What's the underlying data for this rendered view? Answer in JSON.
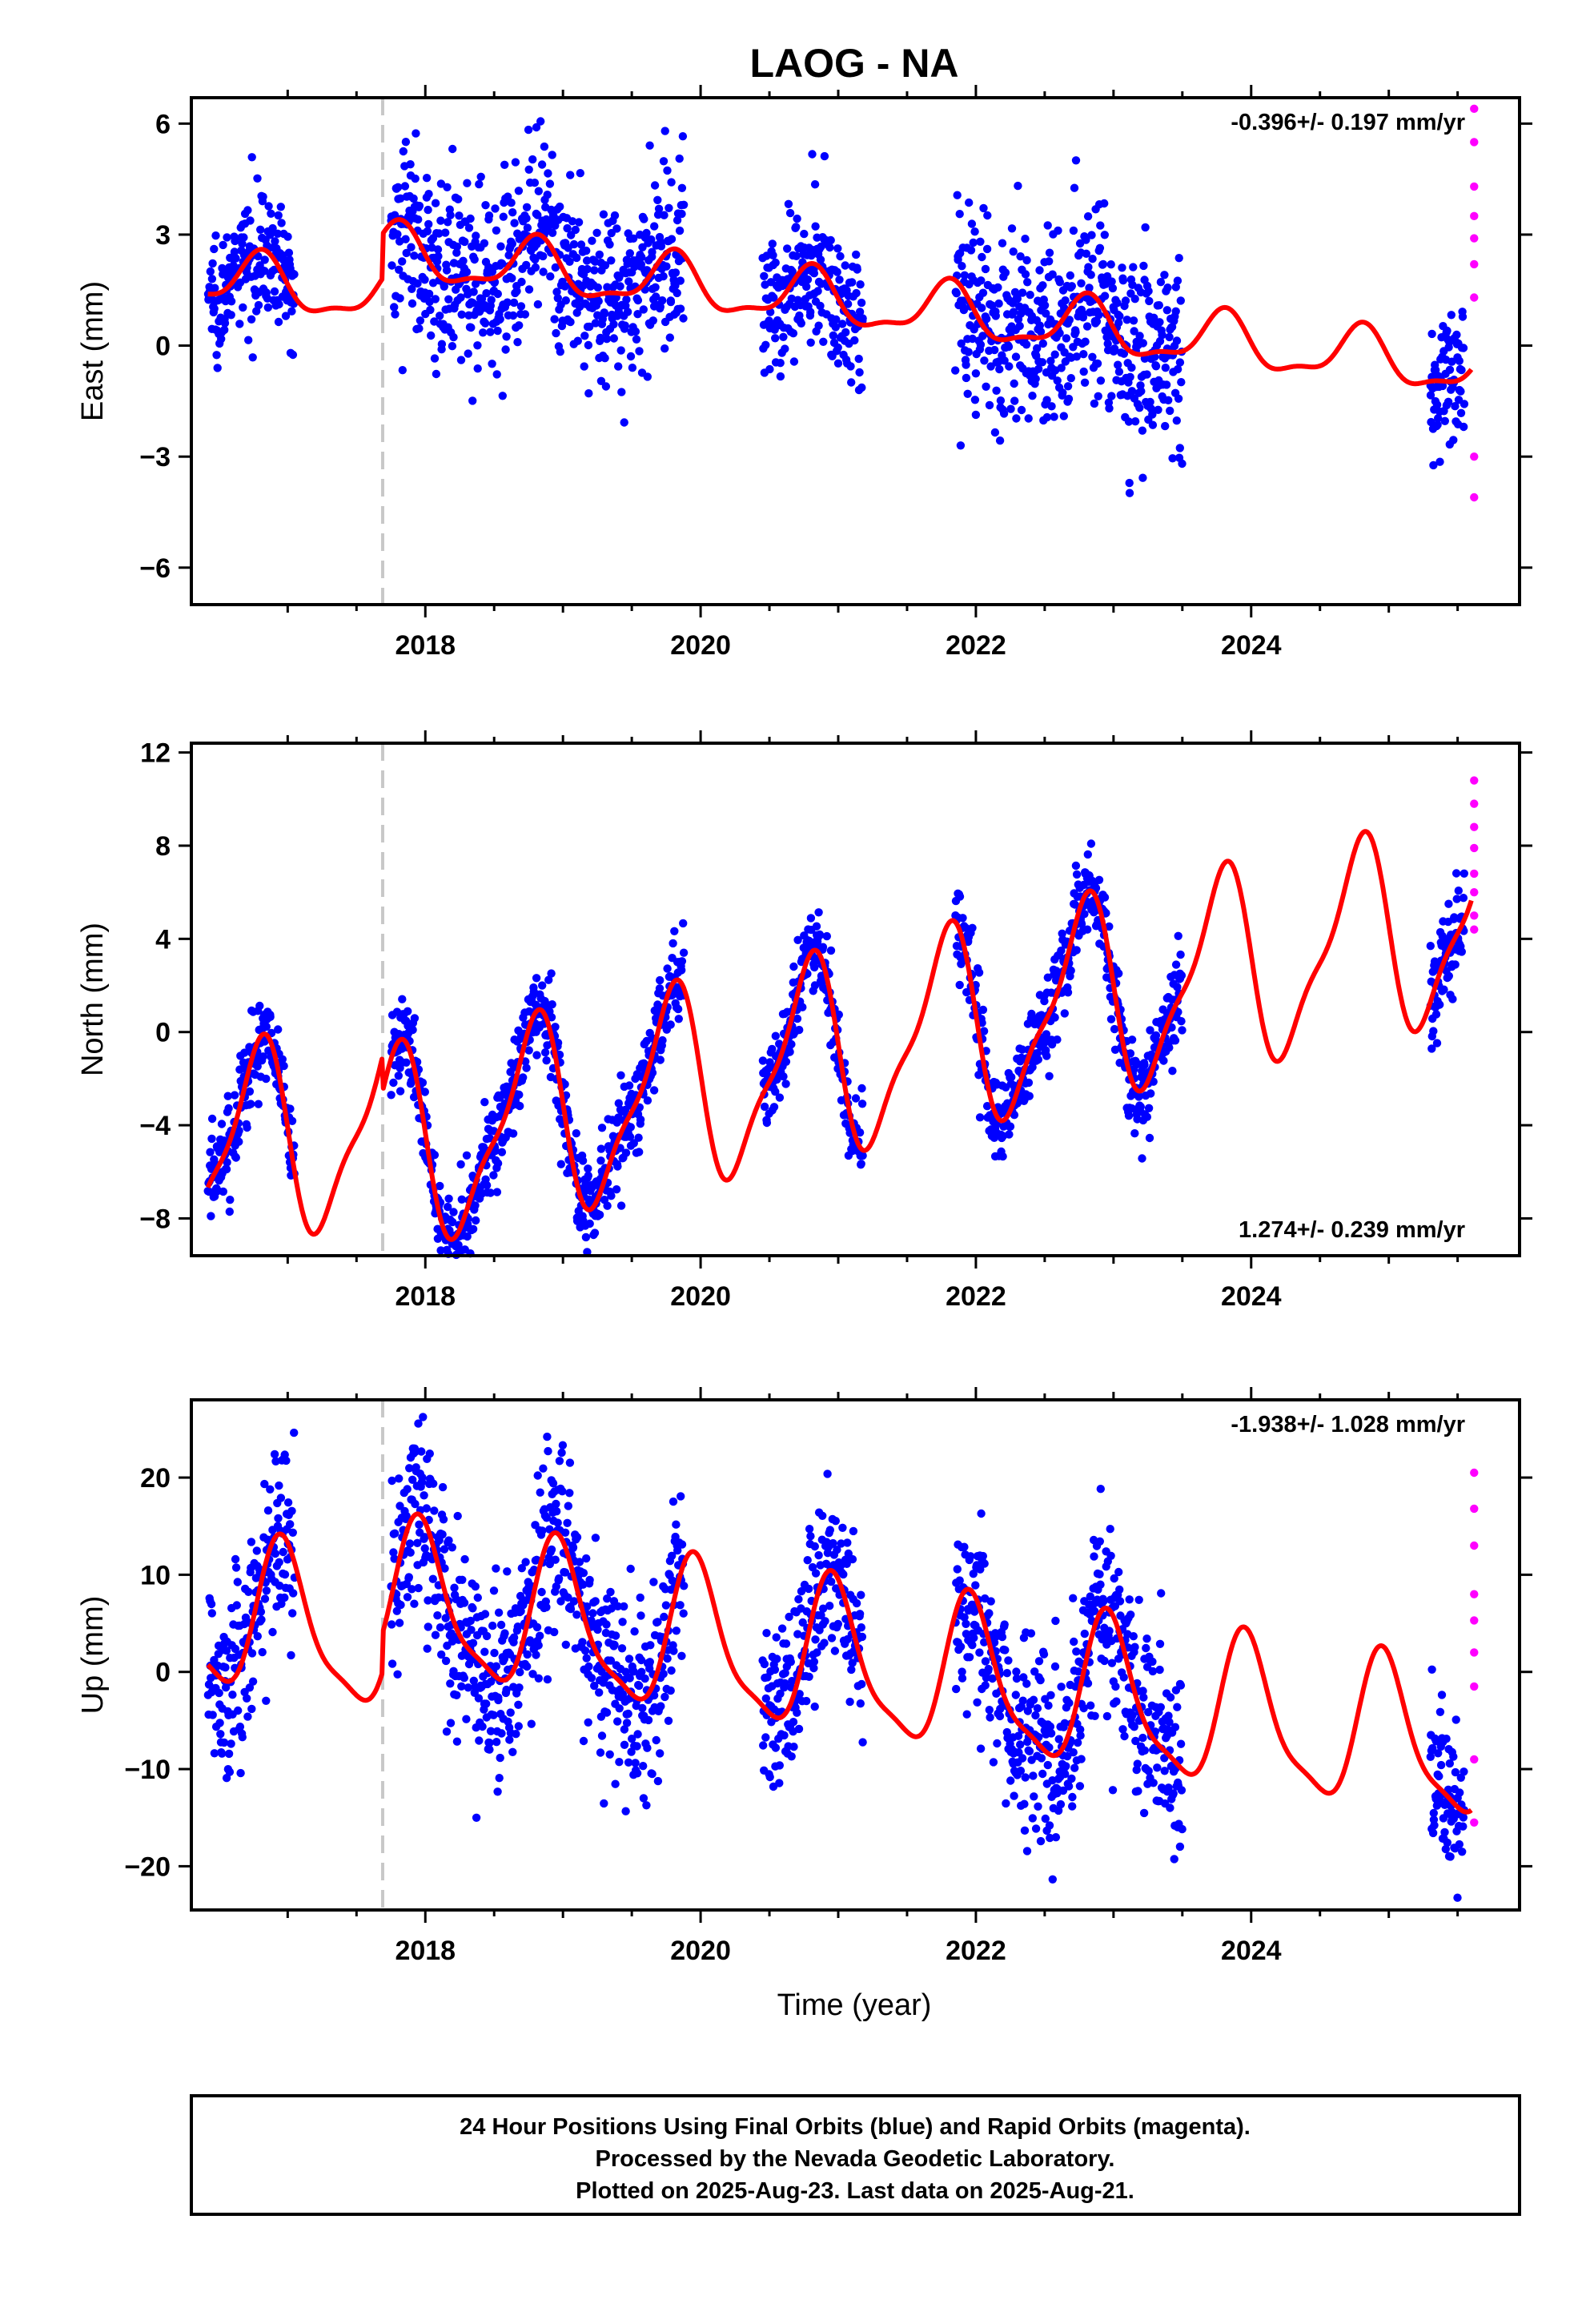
{
  "chart_data": [
    {
      "type": "scatter",
      "panel": "east",
      "title": "LAOG - NA",
      "xlabel": "",
      "ylabel": "East (mm)",
      "rate": "-0.396+/- 0.197 mm/yr",
      "xlim": [
        2016.3,
        2025.95
      ],
      "ylim": [
        -7.0,
        6.7
      ],
      "yticks": [
        6,
        3,
        0,
        -3,
        -6
      ],
      "xticks": [
        2018,
        2020,
        2022,
        2024
      ],
      "break_year": 2017.69,
      "model": {
        "offset": 0.0,
        "rate": -0.396,
        "ref_year": 2021.0,
        "annual_amp": 0.7,
        "annual_phase": 0.55,
        "semi_amp": 0.25,
        "semi_phase": 0.2,
        "step_after_break": 1.2,
        "start": 2016.42,
        "end": 2025.6
      },
      "final_segments": [
        [
          2016.42,
          2017.05,
          0.8
        ],
        [
          2017.75,
          2019.88,
          1.2
        ],
        [
          2020.45,
          2021.18,
          1.0
        ],
        [
          2021.85,
          2023.5,
          1.4
        ],
        [
          2025.3,
          2025.55,
          1.0
        ]
      ],
      "rapid": {
        "x": [
          2025.62,
          2025.62,
          2025.62,
          2025.62,
          2025.62,
          2025.62,
          2025.62,
          2025.62,
          2025.62
        ],
        "y": [
          6.4,
          5.5,
          4.3,
          3.5,
          2.9,
          2.2,
          1.3,
          -3.0,
          -4.1
        ]
      }
    },
    {
      "type": "scatter",
      "panel": "north",
      "title": "",
      "xlabel": "",
      "ylabel": "North (mm)",
      "rate": "1.274+/- 0.239 mm/yr",
      "xlim": [
        2016.3,
        2025.95
      ],
      "ylim": [
        -9.6,
        12.4
      ],
      "yticks": [
        12,
        8,
        4,
        0,
        -4,
        -8
      ],
      "xticks": [
        2018,
        2020,
        2022,
        2024
      ],
      "break_year": 2017.69,
      "model": {
        "offset": 0.5,
        "rate": 1.274,
        "ref_year": 2021.0,
        "annual_amp": 4.0,
        "annual_phase": 0.52,
        "semi_amp": 1.2,
        "semi_phase": 0.25,
        "step_after_break": -1.5,
        "start": 2016.42,
        "end": 2025.6
      },
      "final_segments": [
        [
          2016.42,
          2017.05,
          1.0
        ],
        [
          2017.75,
          2019.88,
          1.0
        ],
        [
          2020.45,
          2021.18,
          0.9
        ],
        [
          2021.85,
          2023.5,
          1.0
        ],
        [
          2025.3,
          2025.55,
          1.0
        ]
      ],
      "rapid": {
        "x": [
          2025.62,
          2025.62,
          2025.62,
          2025.62,
          2025.62,
          2025.62,
          2025.62,
          2025.62
        ],
        "y": [
          10.8,
          9.8,
          8.8,
          7.9,
          6.8,
          6.0,
          5.0,
          4.4
        ]
      }
    },
    {
      "type": "scatter",
      "panel": "up",
      "title": "",
      "xlabel": "Time (year)",
      "ylabel": "Up (mm)",
      "rate": "-1.938+/- 1.028 mm/yr",
      "xlim": [
        2016.3,
        2025.95
      ],
      "ylim": [
        -24.5,
        28.0
      ],
      "yticks": [
        20,
        10,
        0,
        -10,
        -20
      ],
      "xticks": [
        2018,
        2020,
        2022,
        2024
      ],
      "break_year": 2017.69,
      "model": {
        "offset": -3.0,
        "rate": -1.938,
        "ref_year": 2021.0,
        "annual_amp": 7.5,
        "annual_phase": 0.72,
        "semi_amp": 2.0,
        "semi_phase": 0.3,
        "step_after_break": 4.0,
        "start": 2016.42,
        "end": 2025.6
      },
      "final_segments": [
        [
          2016.42,
          2017.05,
          5.0
        ],
        [
          2017.75,
          2019.88,
          5.0
        ],
        [
          2020.45,
          2021.18,
          4.5
        ],
        [
          2021.85,
          2023.5,
          5.0
        ],
        [
          2025.3,
          2025.55,
          4.0
        ]
      ],
      "rapid": {
        "x": [
          2025.62,
          2025.62,
          2025.62,
          2025.62,
          2025.62,
          2025.62,
          2025.62,
          2025.62,
          2025.62
        ],
        "y": [
          20.5,
          16.8,
          13.0,
          8.0,
          5.3,
          2.0,
          -1.5,
          -9.0,
          -15.5
        ]
      }
    }
  ],
  "colors": {
    "final": "#0000ff",
    "rapid": "#ff00ff",
    "model": "#ff0000",
    "break": "#c8c8c8",
    "axis": "#000000"
  },
  "footer": {
    "line1": "24 Hour Positions Using Final Orbits (blue) and Rapid Orbits (magenta).",
    "line2": "Processed by the Nevada Geodetic Laboratory.",
    "line3": "Plotted on 2025-Aug-23. Last data on 2025-Aug-21."
  }
}
